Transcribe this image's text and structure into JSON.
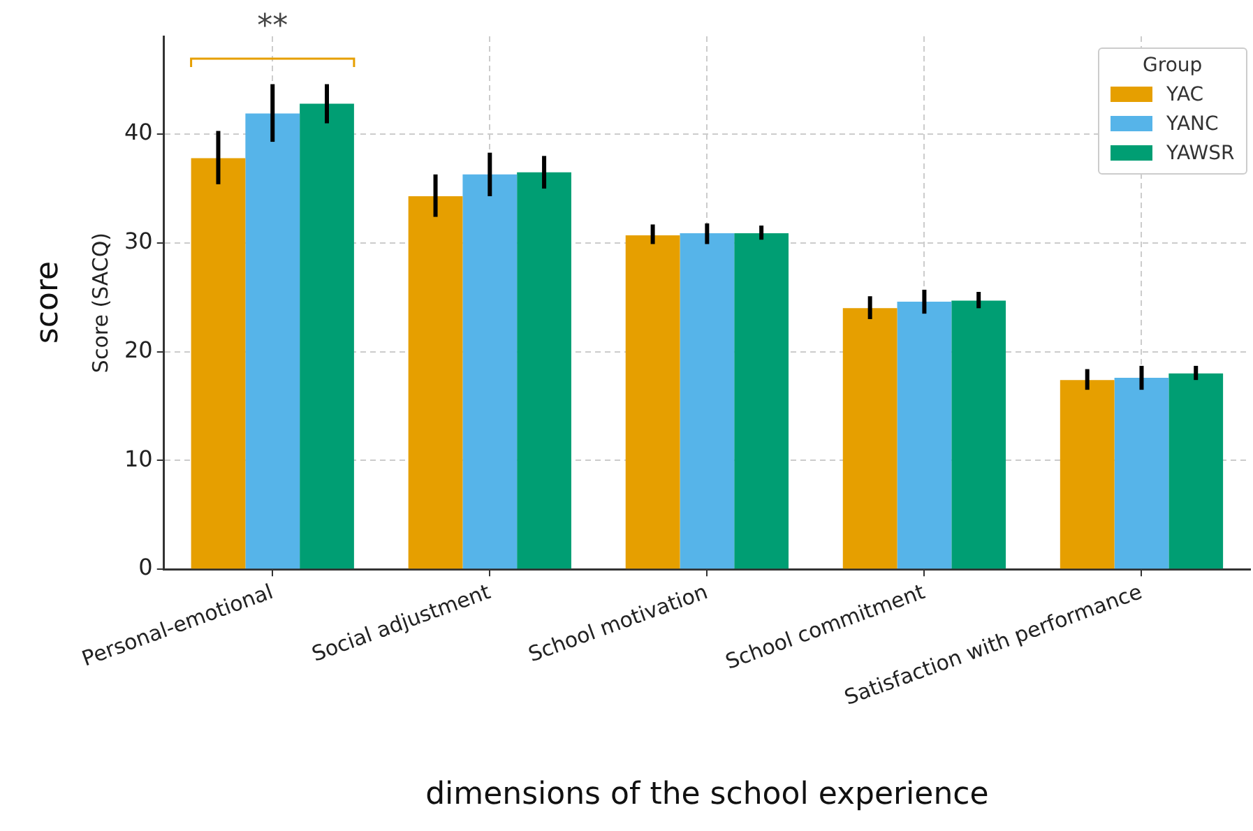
{
  "chart_data": {
    "type": "bar",
    "xlabel": "dimensions of the school experience",
    "ylabel": "Score (SACQ)",
    "legend_title": "Group",
    "categories": [
      "Personal-emotional",
      "Social adjustment",
      "School motivation",
      "School commitment",
      "Satisfaction with performance"
    ],
    "series": [
      {
        "name": "YAC",
        "color": "#e69f00",
        "values": [
          37.8,
          34.3,
          30.7,
          24.0,
          17.4
        ],
        "errors": [
          [
            35.4,
            40.3
          ],
          [
            32.4,
            36.3
          ],
          [
            29.9,
            31.7
          ],
          [
            23.0,
            25.1
          ],
          [
            16.5,
            18.4
          ]
        ]
      },
      {
        "name": "YANC",
        "color": "#56b4e9",
        "values": [
          41.9,
          36.3,
          30.9,
          24.6,
          17.6
        ],
        "errors": [
          [
            39.3,
            44.6
          ],
          [
            34.3,
            38.3
          ],
          [
            29.9,
            31.8
          ],
          [
            23.5,
            25.7
          ],
          [
            16.5,
            18.7
          ]
        ]
      },
      {
        "name": "YAWSR",
        "color": "#009e73",
        "values": [
          42.8,
          36.5,
          30.9,
          24.7,
          18.0
        ],
        "errors": [
          [
            41.0,
            44.6
          ],
          [
            35.0,
            38.0
          ],
          [
            30.3,
            31.6
          ],
          [
            24.0,
            25.5
          ],
          [
            17.4,
            18.7
          ]
        ]
      }
    ],
    "ylim": [
      0,
      49
    ],
    "yticks": [
      0,
      10,
      20,
      30,
      40
    ],
    "grid": true,
    "legend": "top right",
    "annotations": [
      "score",
      "**"
    ]
  }
}
